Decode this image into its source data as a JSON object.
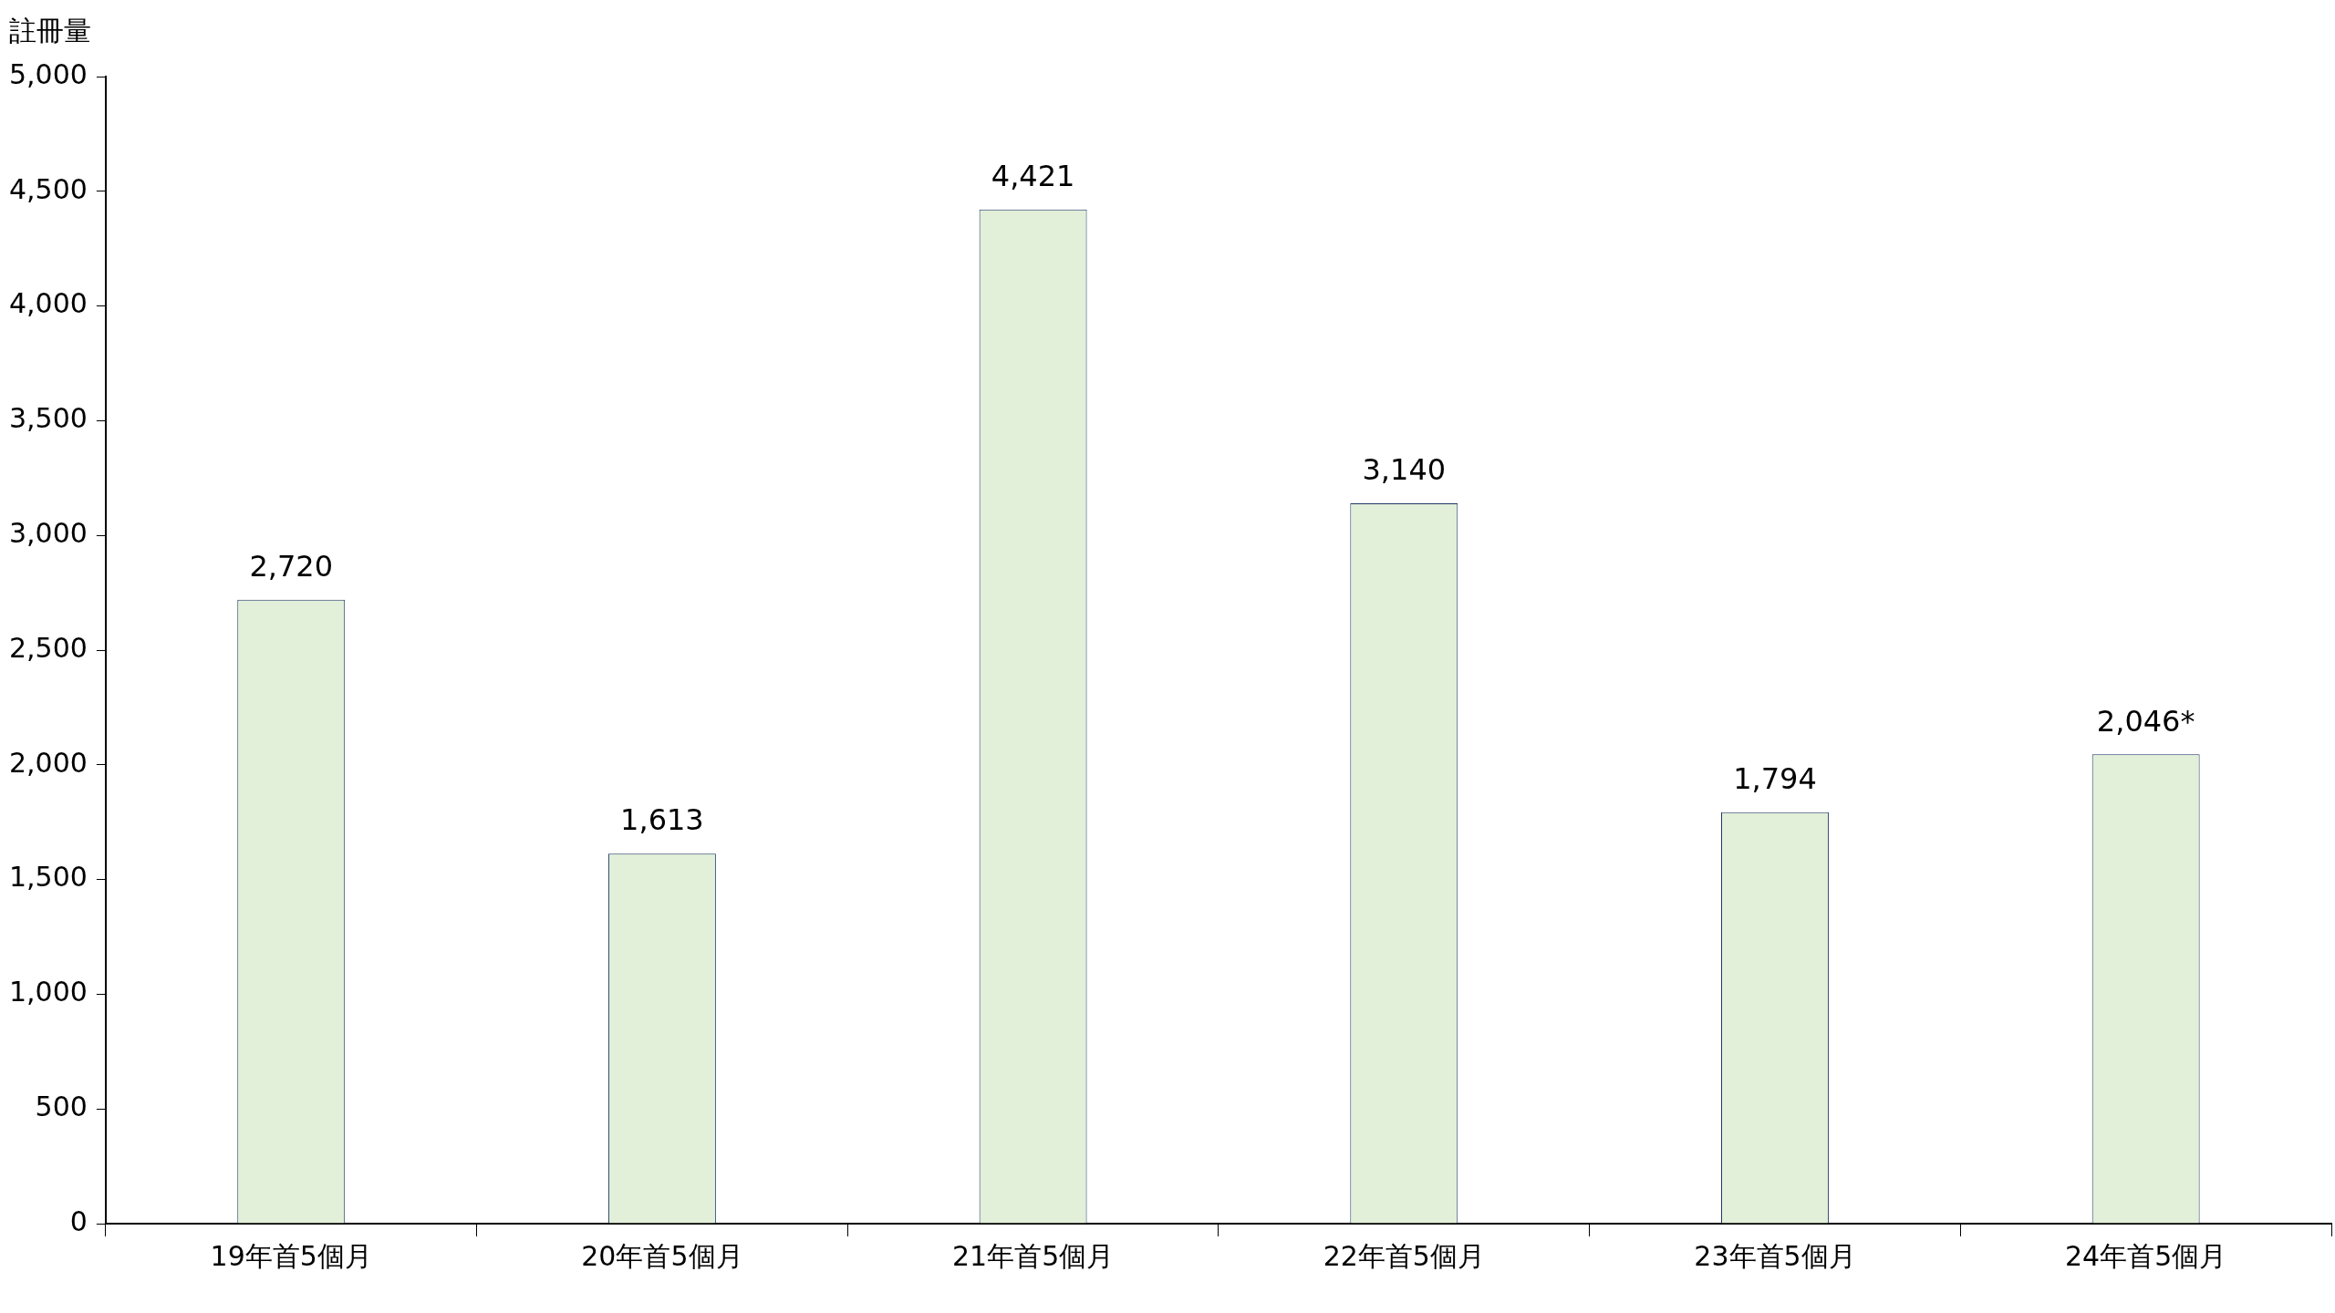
{
  "chart_data": {
    "type": "bar",
    "ylabel": "註冊量",
    "categories": [
      "19年首5個月",
      "20年首5個月",
      "21年首5個月",
      "22年首5個月",
      "23年首5個月",
      "24年首5個月"
    ],
    "values": [
      2720,
      1613,
      4421,
      3140,
      1794,
      2046
    ],
    "value_labels": [
      "2,720",
      "1,613",
      "4,421",
      "3,140",
      "1,794",
      "2,046*"
    ],
    "color": "#e2efd9",
    "ylim": [
      0,
      5000
    ],
    "yticks": [
      {
        "value": 0,
        "label": "0"
      },
      {
        "value": 500,
        "label": "500"
      },
      {
        "value": 1000,
        "label": "1,000"
      },
      {
        "value": 1500,
        "label": "1,500"
      },
      {
        "value": 2000,
        "label": "2,000"
      },
      {
        "value": 2500,
        "label": "2,500"
      },
      {
        "value": 3000,
        "label": "3,000"
      },
      {
        "value": 3500,
        "label": "3,500"
      },
      {
        "value": 4000,
        "label": "4,000"
      },
      {
        "value": 4500,
        "label": "4,500"
      },
      {
        "value": 5000,
        "label": "5,000"
      }
    ],
    "grid": false,
    "legend": false
  }
}
